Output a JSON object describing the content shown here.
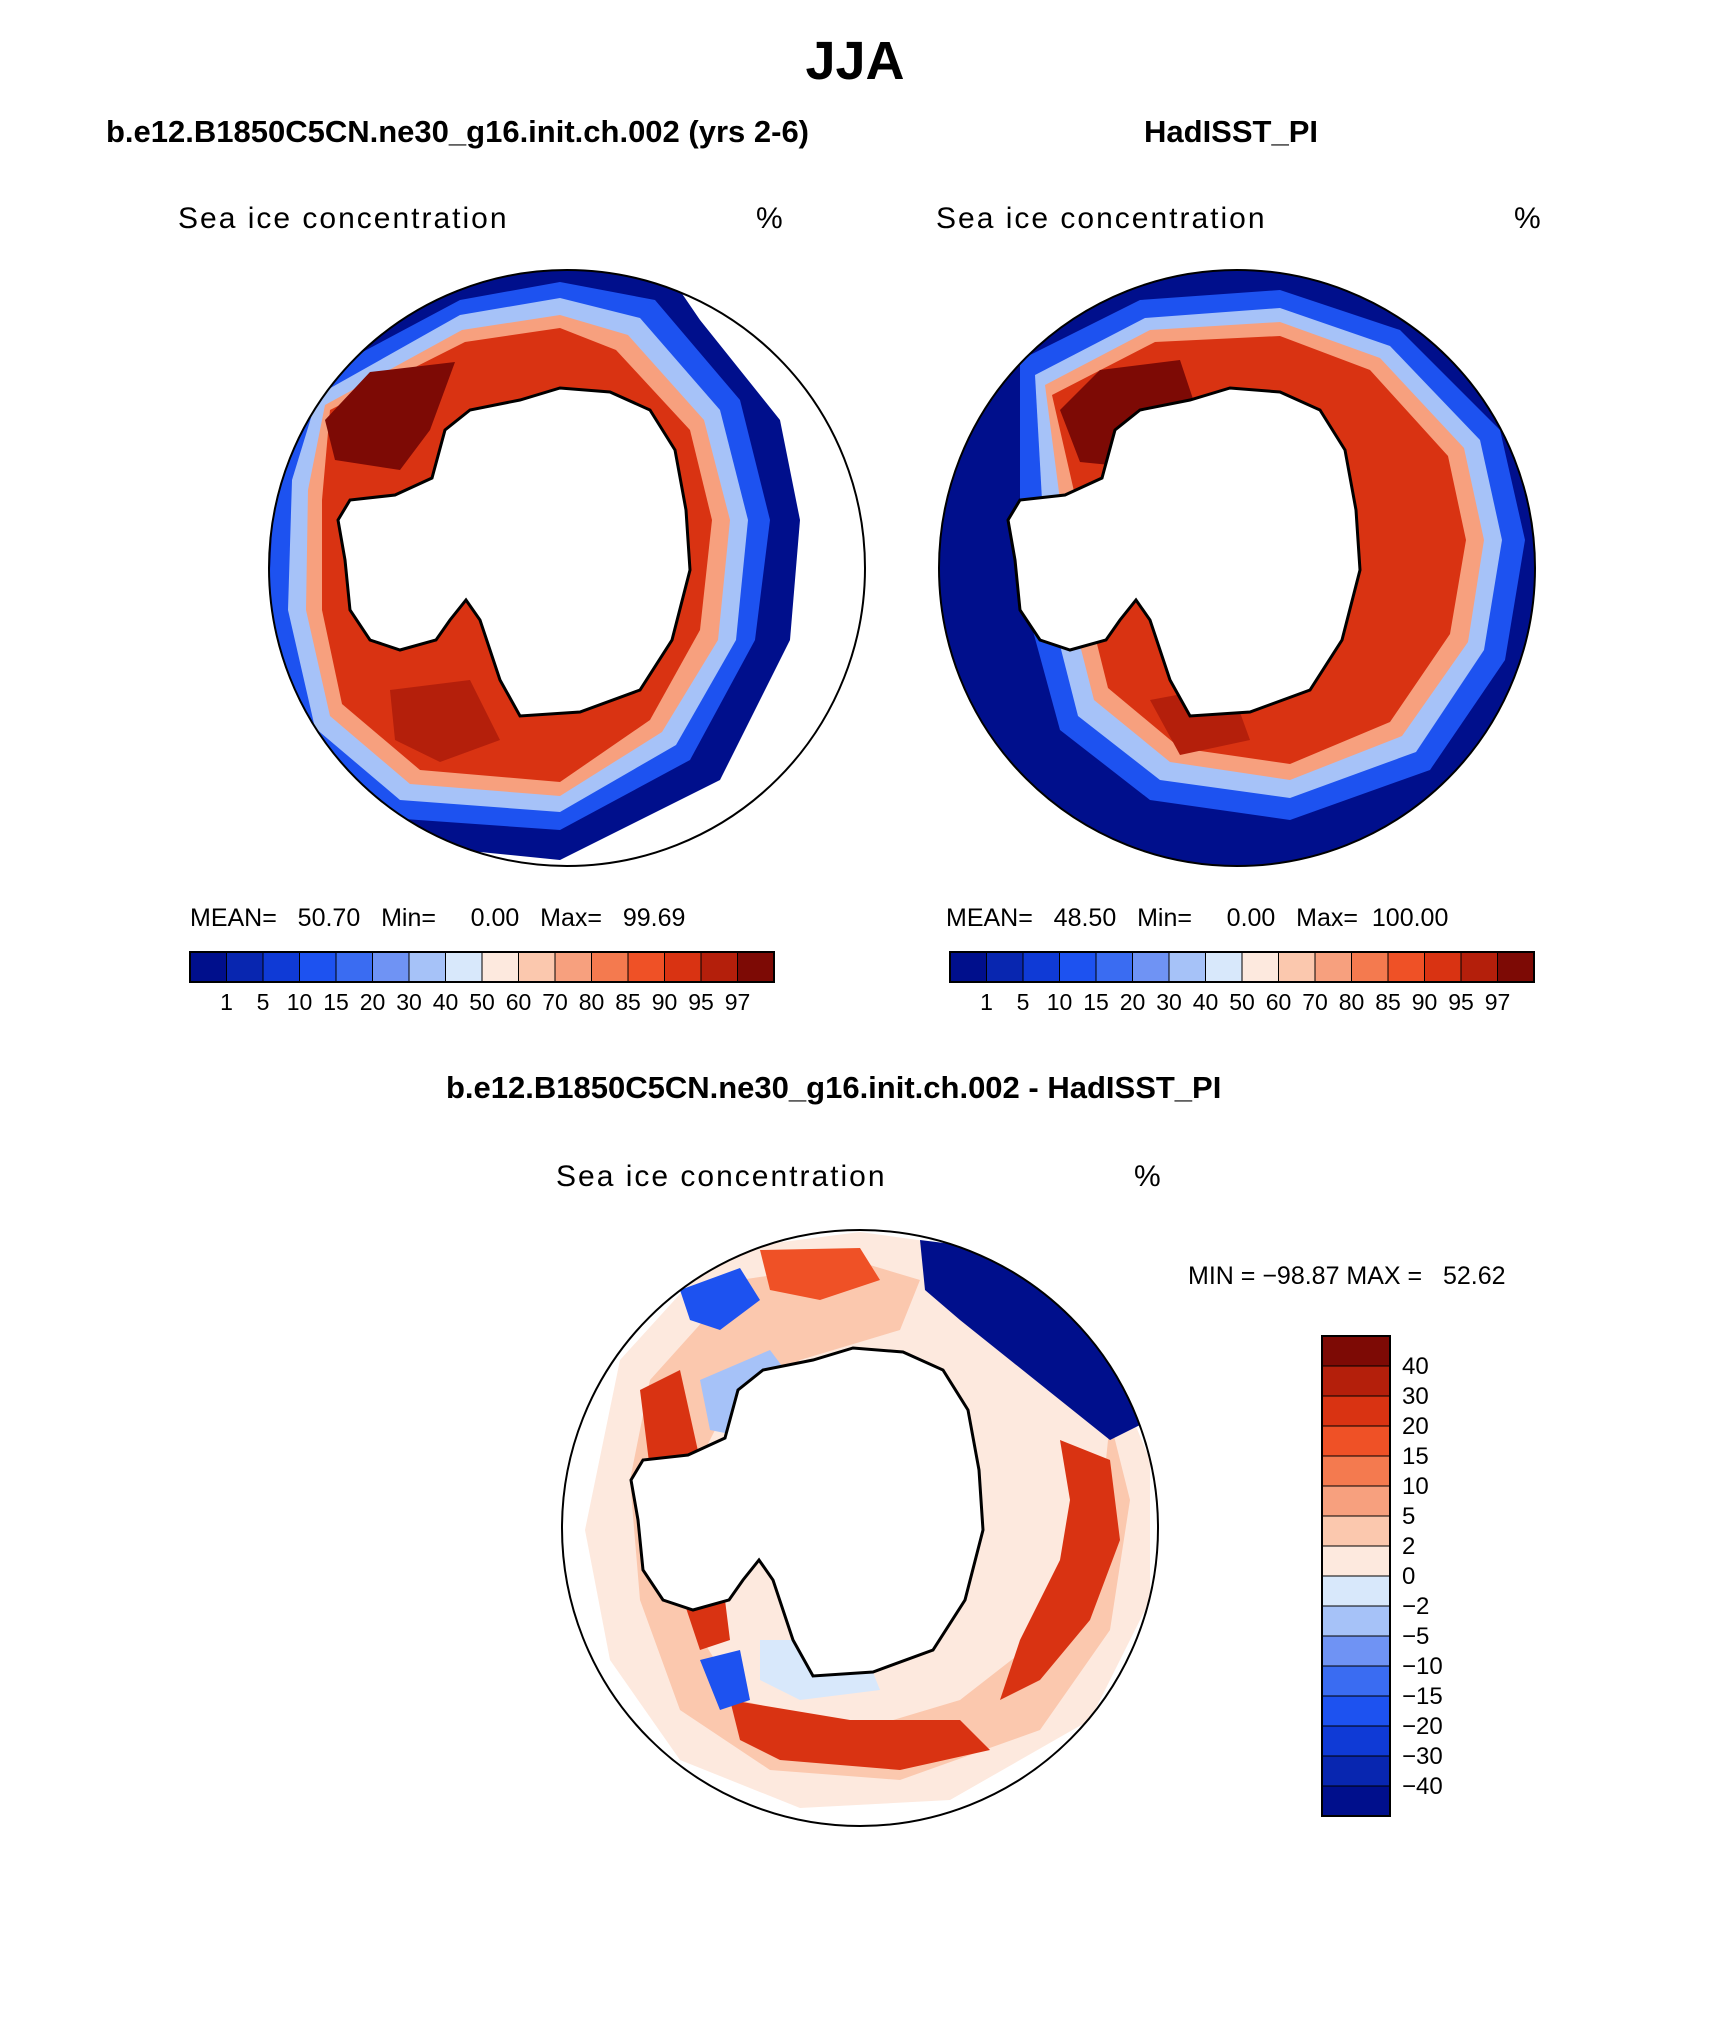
{
  "title": "JJA",
  "panels": [
    {
      "title": "b.e12.B1850C5CN.ne30_g16.init.ch.002 (yrs 2-6)",
      "variable": "Sea ice concentration",
      "units": "%",
      "stats": "MEAN=   50.70   Min=     0.00   Max=   99.69"
    },
    {
      "title": "HadISST_PI",
      "variable": "Sea ice concentration",
      "units": "%",
      "stats": "MEAN=   48.50   Min=     0.00   Max=  100.00"
    },
    {
      "title": "b.e12.B1850C5CN.ne30_g16.init.ch.002 - HadISST_PI",
      "variable": "Sea ice concentration",
      "units": "%",
      "stats": "MIN = −98.87 MAX =   52.62"
    }
  ],
  "colorbar_abs": {
    "labels": [
      "1",
      "5",
      "10",
      "15",
      "20",
      "30",
      "40",
      "50",
      "60",
      "70",
      "80",
      "85",
      "90",
      "95",
      "97"
    ],
    "colors": [
      "#000f8c",
      "#0826b0",
      "#0f3ad6",
      "#1d52f0",
      "#3a6cf2",
      "#6f93f4",
      "#a6c2f8",
      "#d8e8fb",
      "#fde9de",
      "#fbc8ae",
      "#f7a07e",
      "#f47a4f",
      "#ef5126",
      "#d93312",
      "#b41f0b",
      "#7d0a05"
    ]
  },
  "colorbar_diff": {
    "labels": [
      "40",
      "30",
      "20",
      "15",
      "10",
      "5",
      "2",
      "0",
      "−2",
      "−5",
      "−10",
      "−15",
      "−20",
      "−30",
      "−40"
    ],
    "colors": [
      "#7d0a05",
      "#b41f0b",
      "#d93312",
      "#ef5126",
      "#f47a4f",
      "#f7a07e",
      "#fbc8ae",
      "#fde9de",
      "#d8e8fb",
      "#a6c2f8",
      "#6f93f4",
      "#3a6cf2",
      "#1d52f0",
      "#0f3ad6",
      "#0826b0",
      "#000f8c"
    ]
  }
}
